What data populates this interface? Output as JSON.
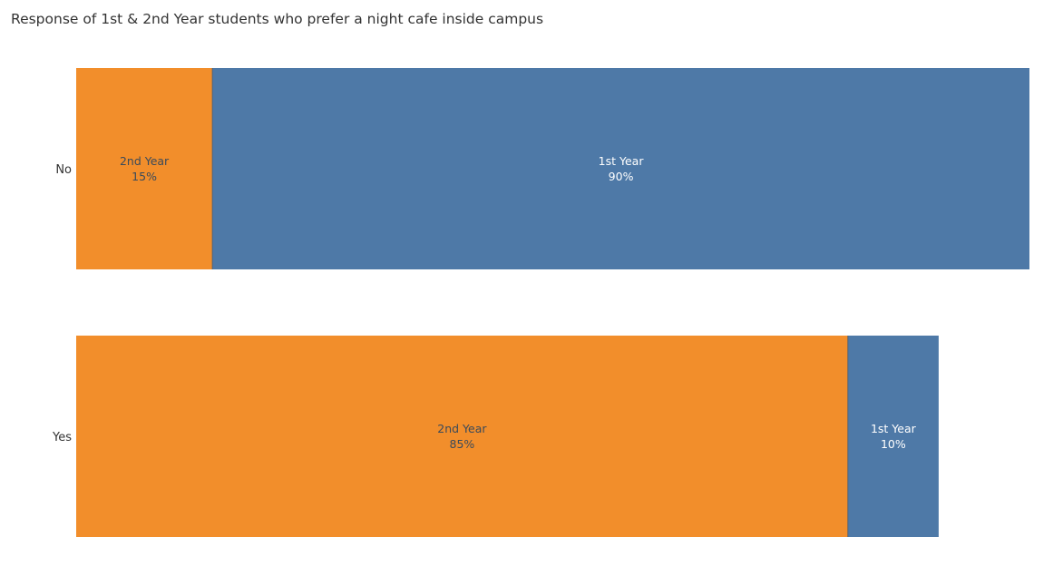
{
  "chart_data": {
    "type": "bar",
    "orientation": "horizontal",
    "stacked": true,
    "title": "Response of 1st & 2nd Year students who prefer a night cafe inside campus",
    "categories": [
      "No",
      "Yes"
    ],
    "series": [
      {
        "name": "2nd Year",
        "color": "#F28E2B",
        "label_color": "#3a4a5a",
        "values": [
          15,
          85
        ]
      },
      {
        "name": "1st Year",
        "color": "#4E79A7",
        "label_color": "#ffffff",
        "values": [
          90,
          10
        ]
      }
    ],
    "value_format": "percent",
    "xlim": [
      0,
      105
    ],
    "grid": false,
    "legend": "none"
  }
}
